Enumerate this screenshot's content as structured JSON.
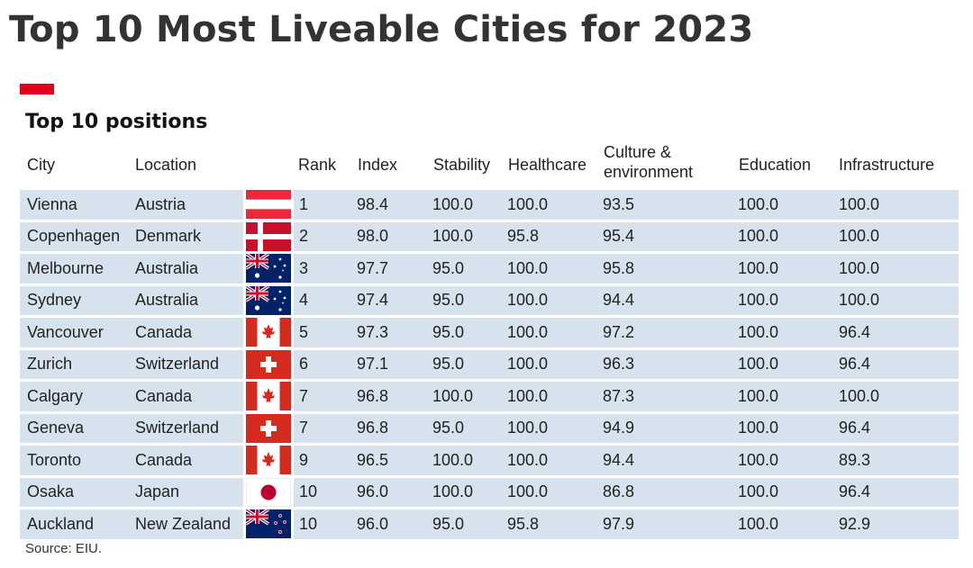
{
  "title": "Top 10 Most Liveable Cities for 2023",
  "subtitle": "Top 10 positions",
  "headers": {
    "city": "City",
    "location": "Location",
    "rank": "Rank",
    "index": "Index",
    "stability": "Stability",
    "healthcare": "Healthcare",
    "culture_line1": "Culture &",
    "culture_line2": "environment",
    "education": "Education",
    "infrastructure": "Infrastructure"
  },
  "source": "Source: EIU.",
  "colors": {
    "accent": "#e3001b",
    "row_bg": "#d6e3ee"
  },
  "chart_data": {
    "type": "table",
    "title": "Top 10 Most Liveable Cities for 2023",
    "subtitle": "Top 10 positions",
    "columns": [
      "City",
      "Location",
      "Rank",
      "Index",
      "Stability",
      "Healthcare",
      "Culture & environment",
      "Education",
      "Infrastructure"
    ],
    "rows": [
      {
        "city": "Vienna",
        "location": "Austria",
        "flag": "austria",
        "rank": "1",
        "index": "98.4",
        "stability": "100.0",
        "healthcare": "100.0",
        "culture": "93.5",
        "education": "100.0",
        "infrastructure": "100.0"
      },
      {
        "city": "Copenhagen",
        "location": "Denmark",
        "flag": "denmark",
        "rank": "2",
        "index": "98.0",
        "stability": "100.0",
        "healthcare": "95.8",
        "culture": "95.4",
        "education": "100.0",
        "infrastructure": "100.0"
      },
      {
        "city": "Melbourne",
        "location": "Australia",
        "flag": "australia",
        "rank": "3",
        "index": "97.7",
        "stability": "95.0",
        "healthcare": "100.0",
        "culture": "95.8",
        "education": "100.0",
        "infrastructure": "100.0"
      },
      {
        "city": "Sydney",
        "location": "Australia",
        "flag": "australia",
        "rank": "4",
        "index": "97.4",
        "stability": "95.0",
        "healthcare": "100.0",
        "culture": "94.4",
        "education": "100.0",
        "infrastructure": "100.0"
      },
      {
        "city": "Vancouver",
        "location": "Canada",
        "flag": "canada",
        "rank": "5",
        "index": "97.3",
        "stability": "95.0",
        "healthcare": "100.0",
        "culture": "97.2",
        "education": "100.0",
        "infrastructure": "96.4"
      },
      {
        "city": "Zurich",
        "location": "Switzerland",
        "flag": "switzerland",
        "rank": "6",
        "index": "97.1",
        "stability": "95.0",
        "healthcare": "100.0",
        "culture": "96.3",
        "education": "100.0",
        "infrastructure": "96.4"
      },
      {
        "city": "Calgary",
        "location": "Canada",
        "flag": "canada",
        "rank": "7",
        "index": "96.8",
        "stability": "100.0",
        "healthcare": "100.0",
        "culture": "87.3",
        "education": "100.0",
        "infrastructure": "100.0"
      },
      {
        "city": "Geneva",
        "location": "Switzerland",
        "flag": "switzerland",
        "rank": "7",
        "index": "96.8",
        "stability": "95.0",
        "healthcare": "100.0",
        "culture": "94.9",
        "education": "100.0",
        "infrastructure": "96.4"
      },
      {
        "city": "Toronto",
        "location": "Canada",
        "flag": "canada",
        "rank": "9",
        "index": "96.5",
        "stability": "100.0",
        "healthcare": "100.0",
        "culture": "94.4",
        "education": "100.0",
        "infrastructure": "89.3"
      },
      {
        "city": "Osaka",
        "location": "Japan",
        "flag": "japan",
        "rank": "10",
        "index": "96.0",
        "stability": "100.0",
        "healthcare": "100.0",
        "culture": "86.8",
        "education": "100.0",
        "infrastructure": "96.4"
      },
      {
        "city": "Auckland",
        "location": "New Zealand",
        "flag": "newzealand",
        "rank": "10",
        "index": "96.0",
        "stability": "95.0",
        "healthcare": "95.8",
        "culture": "97.9",
        "education": "100.0",
        "infrastructure": "92.9"
      }
    ]
  }
}
